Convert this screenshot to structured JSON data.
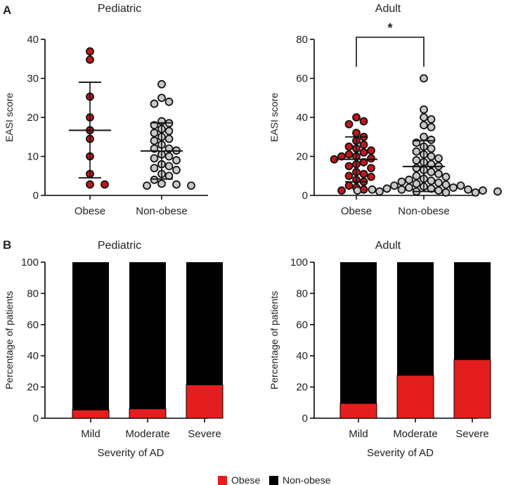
{
  "panel_labels": {
    "a": "A",
    "b": "B"
  },
  "colors": {
    "obese": "#e41e1e",
    "obese_dot": "#c0161b",
    "nonobese_dot": "#c8c8c8",
    "nonobese_bar": "#000000",
    "axis": "#000000"
  },
  "legend": {
    "obese": "Obese",
    "nonobese": "Non-obese"
  },
  "chart_data": [
    {
      "id": "a-pediatric",
      "type": "scatter",
      "title": "Pediatric",
      "ylabel": "EASI score",
      "ylim": [
        0,
        40
      ],
      "yticks": [
        0,
        10,
        20,
        30,
        40
      ],
      "categories": [
        "Obese",
        "Non-obese"
      ],
      "series": [
        {
          "name": "Obese",
          "mean": 16.7,
          "sd_low": 4.5,
          "sd_high": 29.0,
          "points": [
            36.9,
            34.8,
            25.3,
            20.0,
            16.7,
            14.5,
            10.0,
            5.5,
            2.8,
            2.8
          ]
        },
        {
          "name": "Non-obese",
          "mean": 11.4,
          "sd_low": 4.2,
          "sd_high": 18.6,
          "points": [
            28.5,
            25.0,
            24.0,
            23.5,
            19.0,
            18.5,
            18.0,
            17.0,
            16.5,
            16.0,
            15.0,
            14.5,
            14.0,
            13.0,
            12.0,
            12.0,
            11.5,
            10.5,
            10.0,
            9.5,
            9.0,
            8.0,
            7.5,
            7.0,
            6.5,
            5.5,
            5.0,
            4.0,
            3.0,
            2.8,
            2.5,
            2.5
          ]
        }
      ]
    },
    {
      "id": "a-adult",
      "type": "scatter",
      "title": "Adult",
      "ylabel": "EASI score",
      "ylim": [
        0,
        80
      ],
      "yticks": [
        0,
        20,
        40,
        60,
        80
      ],
      "categories": [
        "Obese",
        "Non-obese"
      ],
      "significance": "*",
      "series": [
        {
          "name": "Obese",
          "mean": 18.5,
          "sd_low": 7.0,
          "sd_high": 30.0,
          "points": [
            40.0,
            38.0,
            36.5,
            32.0,
            30.0,
            28.0,
            26.0,
            25.0,
            24.0,
            23.0,
            22.0,
            21.0,
            20.0,
            20.0,
            19.0,
            18.5,
            17.0,
            16.0,
            15.0,
            14.0,
            12.0,
            11.0,
            10.0,
            9.5,
            8.0,
            7.0,
            5.0,
            4.0,
            3.0,
            2.5
          ]
        },
        {
          "name": "Non-obese",
          "mean": 14.8,
          "sd_low": 2.0,
          "sd_high": 28.0,
          "points": [
            60.0,
            44.0,
            40.0,
            39.0,
            36.0,
            35.0,
            30.0,
            28.5,
            27.0,
            25.0,
            24.0,
            22.5,
            21.0,
            20.0,
            19.0,
            18.0,
            17.0,
            16.0,
            15.0,
            14.0,
            13.0,
            12.0,
            11.0,
            10.0,
            9.5,
            8.5,
            8.0,
            7.5,
            7.0,
            6.5,
            6.0,
            5.5,
            5.0,
            5.0,
            4.5,
            4.0,
            4.0,
            3.5,
            3.5,
            3.0,
            3.0,
            3.0,
            2.5,
            2.5,
            2.5,
            2.0,
            2.0,
            2.0,
            1.5,
            1.5
          ]
        }
      ]
    },
    {
      "id": "b-pediatric",
      "type": "bar",
      "stacked": true,
      "title": "Pediatric",
      "xlabel": "Severity of AD",
      "ylabel": "Percentage of patients",
      "ylim": [
        0,
        100
      ],
      "yticks": [
        0,
        20,
        40,
        60,
        80,
        100
      ],
      "categories": [
        "Mild",
        "Moderate",
        "Severe"
      ],
      "series": [
        {
          "name": "Obese",
          "values": [
            5.3,
            6.0,
            21.4
          ]
        },
        {
          "name": "Non-obese",
          "values": [
            94.7,
            94.0,
            78.6
          ]
        }
      ]
    },
    {
      "id": "b-adult",
      "type": "bar",
      "stacked": true,
      "title": "Adult",
      "xlabel": "Severity of AD",
      "ylabel": "Percentage of patients",
      "ylim": [
        0,
        100
      ],
      "yticks": [
        0,
        20,
        40,
        60,
        80,
        100
      ],
      "categories": [
        "Mild",
        "Moderate",
        "Severe"
      ],
      "series": [
        {
          "name": "Obese",
          "values": [
            9.5,
            27.5,
            37.5
          ]
        },
        {
          "name": "Non-obese",
          "values": [
            90.5,
            72.5,
            62.5
          ]
        }
      ]
    }
  ]
}
